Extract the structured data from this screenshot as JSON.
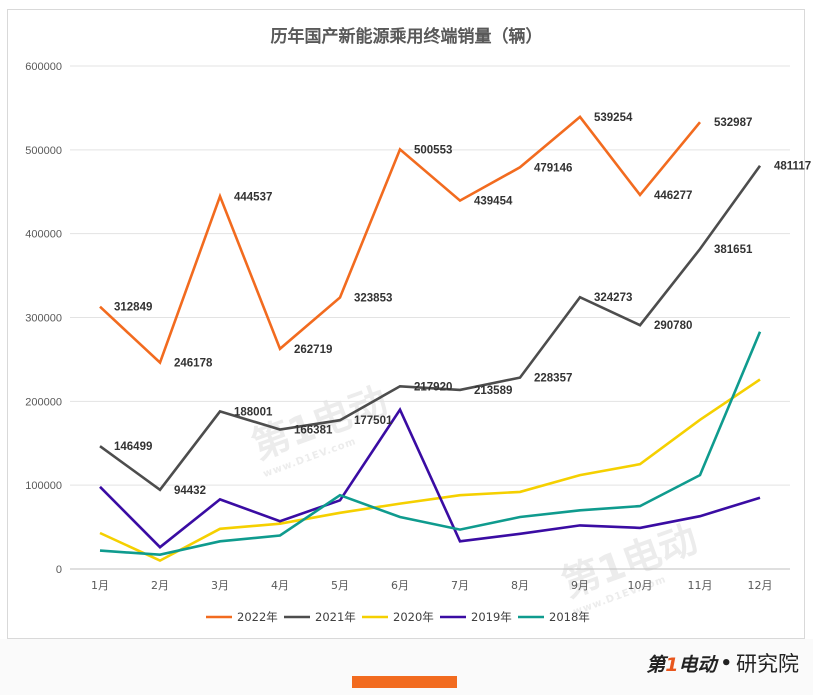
{
  "chart_data": {
    "type": "line",
    "title": "历年国产新能源乘用终端销量（辆）",
    "categories": [
      "1月",
      "2月",
      "3月",
      "4月",
      "5月",
      "6月",
      "7月",
      "8月",
      "9月",
      "10月",
      "11月",
      "12月"
    ],
    "ylim": [
      0,
      600000
    ],
    "yticks": [
      "0",
      "100000",
      "200000",
      "300000",
      "400000",
      "500000",
      "600000"
    ],
    "grid": "horizontal",
    "legend_position": "bottom",
    "series": [
      {
        "name": "2022年",
        "color": "#f26b1f",
        "values": [
          312849,
          246178,
          444537,
          262719,
          323853,
          500553,
          439454,
          479146,
          539254,
          446277,
          532987,
          null
        ],
        "labels": [
          "312849",
          "246178",
          "444537",
          "262719",
          "323853",
          "500553",
          "439454",
          "479146",
          "539254",
          "446277",
          "532987",
          ""
        ]
      },
      {
        "name": "2021年",
        "color": "#4d4d4d",
        "values": [
          146499,
          94432,
          188001,
          166381,
          177501,
          217920,
          213589,
          228357,
          324273,
          290780,
          381651,
          481117
        ],
        "labels": [
          "146499",
          "94432",
          "188001",
          "166381",
          "177501",
          "217920",
          "213589",
          "228357",
          "324273",
          "290780",
          "381651",
          "481117"
        ]
      },
      {
        "name": "2020年",
        "color": "#f5d000",
        "values": [
          43000,
          10000,
          48000,
          54000,
          67000,
          78000,
          88000,
          92000,
          112000,
          125000,
          178000,
          226000
        ],
        "labels": [
          "",
          "",
          "",
          "",
          "",
          "",
          "",
          "",
          "",
          "",
          "",
          ""
        ]
      },
      {
        "name": "2019年",
        "color": "#3a0ca3",
        "values": [
          98000,
          26000,
          83000,
          57000,
          82000,
          190000,
          33000,
          42000,
          52000,
          49000,
          63000,
          85000
        ],
        "labels": [
          "",
          "",
          "",
          "",
          "",
          "",
          "",
          "",
          "",
          "",
          "",
          ""
        ]
      },
      {
        "name": "2018年",
        "color": "#0f9b8e",
        "values": [
          22000,
          17000,
          33000,
          40000,
          88000,
          62000,
          47000,
          62000,
          70000,
          75000,
          112000,
          283000
        ],
        "labels": [
          "",
          "",
          "",
          "",
          "",
          "",
          "",
          "",
          "",
          "",
          "",
          ""
        ]
      }
    ]
  },
  "brand": {
    "mark_a": "第",
    "mark_b": "1",
    "mark_c": "电动",
    "dot": "•",
    "sub": "研究院"
  },
  "watermark": {
    "text": "第1电动",
    "sub": "www.D1EV.com"
  }
}
